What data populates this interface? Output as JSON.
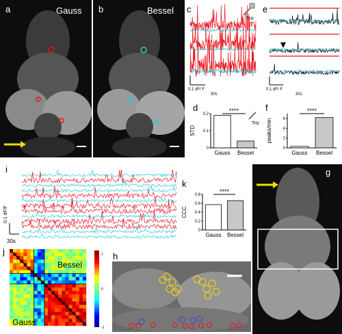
{
  "panels": {
    "a": {
      "letter": "a",
      "title": "Gauss"
    },
    "b": {
      "letter": "b",
      "title": "Bessel"
    },
    "c": {
      "letter": "c",
      "tric_label": "Tric",
      "scale_y": "0.1 dF/ F",
      "scale_x": "30s"
    },
    "d": {
      "letter": "d",
      "tric_label": "Tric"
    },
    "e": {
      "letter": "e",
      "scale_y": "0.1 dF/ F",
      "scale_x": "30s"
    },
    "f": {
      "letter": "f"
    },
    "g": {
      "letter": "g"
    },
    "h": {
      "letter": "h"
    },
    "i": {
      "letter": "i",
      "scale_y": "0.1 dF/F",
      "scale_x": "30s"
    },
    "j": {
      "letter": "j",
      "label_top": "Bessel",
      "label_bottom": "Gauss",
      "colorbar_top": "1",
      "colorbar_mid": "0",
      "colorbar_bot": "-1"
    },
    "k": {
      "letter": "k"
    }
  },
  "colors": {
    "gauss_trace": "#e8141e",
    "bessel_trace": "#27c9d6",
    "bar_bessel": "#c8c8c8",
    "arrow": "#f2dc00"
  },
  "chart_data": [
    {
      "panel": "d",
      "type": "bar",
      "categories": [
        "Gauss",
        "Bessel"
      ],
      "values": [
        0.19,
        0.04
      ],
      "ylabel": "STD",
      "ylim": [
        0,
        0.2
      ],
      "ticks": [
        "0",
        "0.1",
        "0.2"
      ],
      "significance": "****"
    },
    {
      "panel": "f",
      "type": "bar",
      "categories": [
        "Gauss",
        "Bessel"
      ],
      "values": [
        0.3,
        6.2
      ],
      "ylabel": "peaks/min",
      "ylim": [
        0,
        7
      ],
      "ticks": [
        "0",
        "2",
        "4",
        "6"
      ],
      "significance": "****"
    },
    {
      "panel": "k",
      "type": "bar",
      "categories": [
        "Gauss",
        "Bessel"
      ],
      "values": [
        0.57,
        0.66
      ],
      "ylabel": "CCC",
      "ylim": [
        0,
        0.8
      ],
      "ticks": [
        "0",
        "0.2",
        "0.4",
        "0.6",
        "0.8"
      ],
      "significance": "****"
    }
  ]
}
